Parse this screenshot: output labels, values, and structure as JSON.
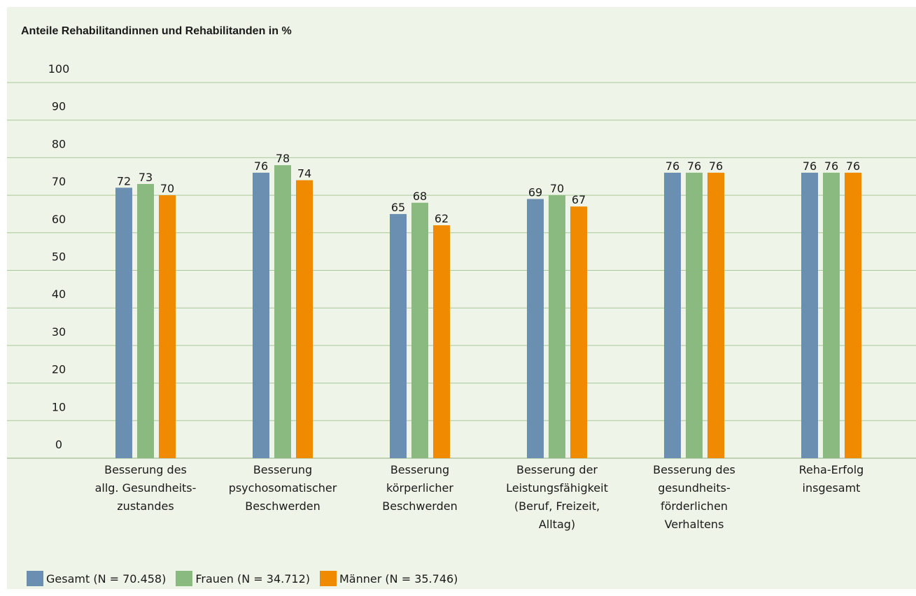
{
  "chart_data": {
    "type": "bar",
    "title": "Anteile Rehabilitandinnen und Rehabilitanden in %",
    "ylim": [
      0,
      100
    ],
    "yticks": [
      0,
      10,
      20,
      30,
      40,
      50,
      60,
      70,
      80,
      90,
      100
    ],
    "grid": true,
    "legend_position": "bottom-left",
    "categories": [
      [
        "Besserung des",
        "allg. Gesundheits-",
        "zustandes"
      ],
      [
        "Besserung",
        "psychosomatischer",
        "Beschwerden"
      ],
      [
        "Besserung",
        "körperlicher",
        "Beschwerden"
      ],
      [
        "Besserung der",
        "Leistungsfähigkeit",
        "(Beruf, Freizeit,",
        "Alltag)"
      ],
      [
        "Besserung des",
        "gesundheits-",
        "förderlichen",
        "Verhaltens"
      ],
      [
        "Reha-Erfolg",
        "insgesamt"
      ]
    ],
    "series": [
      {
        "name": "Gesamt (N = 70.458)",
        "color": "#6b8fb0",
        "values": [
          72,
          76,
          65,
          69,
          76,
          76
        ]
      },
      {
        "name": "Frauen (N = 34.712)",
        "color": "#8aba80",
        "values": [
          73,
          78,
          68,
          70,
          76,
          76
        ]
      },
      {
        "name": "Männer (N = 35.746)",
        "color": "#f08a00",
        "values": [
          70,
          74,
          62,
          67,
          76,
          76
        ]
      }
    ],
    "gridline_color": "#a9c89a"
  }
}
